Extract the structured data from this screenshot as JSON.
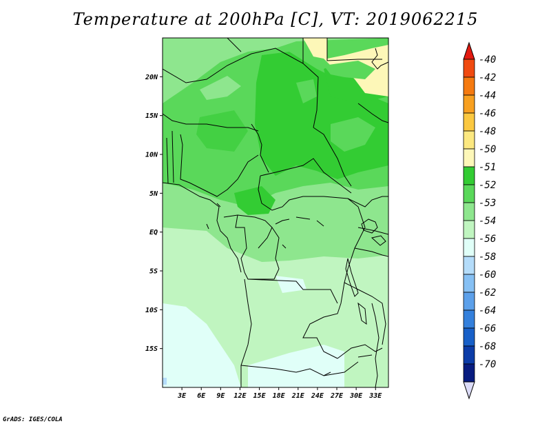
{
  "title": "Temperature at 200hPa [C], VT: 2019062215",
  "footer": "GrADS: IGES/COLA",
  "map": {
    "lon_range": [
      0,
      35
    ],
    "lat_range": [
      -20,
      25
    ],
    "lat_ticks": [
      {
        "value": 20,
        "label": "20N"
      },
      {
        "value": 15,
        "label": "15N"
      },
      {
        "value": 10,
        "label": "10N"
      },
      {
        "value": 5,
        "label": "5N"
      },
      {
        "value": 0,
        "label": "EQ"
      },
      {
        "value": -5,
        "label": "5S"
      },
      {
        "value": -10,
        "label": "10S"
      },
      {
        "value": -15,
        "label": "15S"
      }
    ],
    "lon_ticks": [
      {
        "value": 3,
        "label": "3E"
      },
      {
        "value": 6,
        "label": "6E"
      },
      {
        "value": 9,
        "label": "9E"
      },
      {
        "value": 12,
        "label": "12E"
      },
      {
        "value": 15,
        "label": "15E"
      },
      {
        "value": 18,
        "label": "18E"
      },
      {
        "value": 21,
        "label": "21E"
      },
      {
        "value": 24,
        "label": "24E"
      },
      {
        "value": 27,
        "label": "27E"
      },
      {
        "value": 30,
        "label": "30E"
      },
      {
        "value": 33,
        "label": "33E"
      }
    ]
  },
  "colorbar": {
    "labels": [
      "-40",
      "-42",
      "-44",
      "-46",
      "-48",
      "-50",
      "-51",
      "-52",
      "-53",
      "-54",
      "-56",
      "-58",
      "-60",
      "-62",
      "-64",
      "-66",
      "-68",
      "-70"
    ],
    "colors": [
      "#e31a10",
      "#f04a10",
      "#f57a10",
      "#f8a020",
      "#fbc840",
      "#fce880",
      "#fdf7b8",
      "#33cc33",
      "#5ad85a",
      "#8ee68e",
      "#c0f5c0",
      "#e0fff8",
      "#b4dcfa",
      "#86c0f4",
      "#5ca0ea",
      "#3480dc",
      "#1860c8",
      "#0c3ca8",
      "#081c80",
      "#dcdcf8"
    ]
  }
}
